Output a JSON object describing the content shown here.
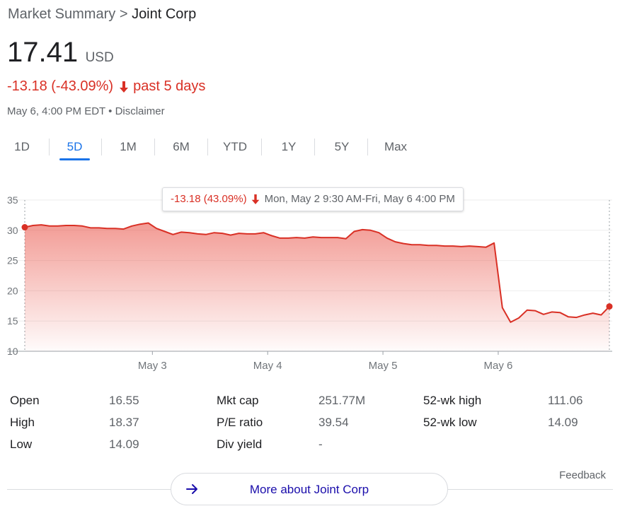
{
  "breadcrumb": {
    "parent": "Market Summary",
    "separator": ">",
    "current": "Joint Corp"
  },
  "quote": {
    "price": "17.41",
    "currency": "USD",
    "change": "-13.18 (-43.09%)",
    "change_period": "past 5 days",
    "timestamp": "May 6, 4:00 PM EDT",
    "bullet": "•",
    "disclaimer": "Disclaimer"
  },
  "tabs": [
    {
      "label": "1D"
    },
    {
      "label": "5D"
    },
    {
      "label": "1M"
    },
    {
      "label": "6M"
    },
    {
      "label": "YTD"
    },
    {
      "label": "1Y"
    },
    {
      "label": "5Y"
    },
    {
      "label": "Max"
    }
  ],
  "active_tab": "5D",
  "tooltip": {
    "change": "-13.18 (43.09%)",
    "range": "Mon, May 2 9:30 AM-Fri, May 6 4:00 PM"
  },
  "colors": {
    "down": "#d93025",
    "accent": "#1a73e8",
    "link": "#1a0dab"
  },
  "chart_data": {
    "type": "area",
    "title": "",
    "xlabel": "",
    "ylabel": "",
    "ylim": [
      10,
      35
    ],
    "yticks": [
      10,
      15,
      20,
      25,
      30,
      35
    ],
    "x_tick_labels": [
      "May 3",
      "May 4",
      "May 5",
      "May 6"
    ],
    "grid": true,
    "series": [
      {
        "values": [
          30.5,
          30.8,
          30.9,
          30.7,
          30.7,
          30.8,
          30.8,
          30.7,
          30.4,
          30.4,
          30.3,
          30.3,
          30.2,
          30.7,
          31.0,
          31.2,
          30.3,
          29.8,
          29.3,
          29.7,
          29.6,
          29.4,
          29.3,
          29.6,
          29.5,
          29.2,
          29.5,
          29.4,
          29.4,
          29.6,
          29.1,
          28.7,
          28.7,
          28.8,
          28.7,
          28.9,
          28.8,
          28.8,
          28.8,
          28.6,
          29.8,
          30.1,
          30.0,
          29.6,
          28.7,
          28.1,
          27.8,
          27.6,
          27.6,
          27.5,
          27.5,
          27.4,
          27.4,
          27.3,
          27.4,
          27.3,
          27.2,
          27.9,
          17.2,
          14.8,
          15.5,
          16.8,
          16.7,
          16.1,
          16.5,
          16.4,
          15.7,
          15.6,
          16.0,
          16.3,
          16.0,
          17.41
        ]
      }
    ],
    "day_boundaries": [
      15.5,
      29.5,
      43.5,
      57.5
    ],
    "start_point": 30.5,
    "end_point": 17.41
  },
  "stats": {
    "open": {
      "label": "Open",
      "value": "16.55"
    },
    "high": {
      "label": "High",
      "value": "18.37"
    },
    "low": {
      "label": "Low",
      "value": "14.09"
    },
    "mkt_cap": {
      "label": "Mkt cap",
      "value": "251.77M"
    },
    "pe_ratio": {
      "label": "P/E ratio",
      "value": "39.54"
    },
    "div_yield": {
      "label": "Div yield",
      "value": "-"
    },
    "wk52_high": {
      "label": "52-wk high",
      "value": "111.06"
    },
    "wk52_low": {
      "label": "52-wk low",
      "value": "14.09"
    }
  },
  "footer": {
    "feedback": "Feedback",
    "more": "More about Joint Corp",
    "arrow_icon": "arrow-right-icon"
  }
}
